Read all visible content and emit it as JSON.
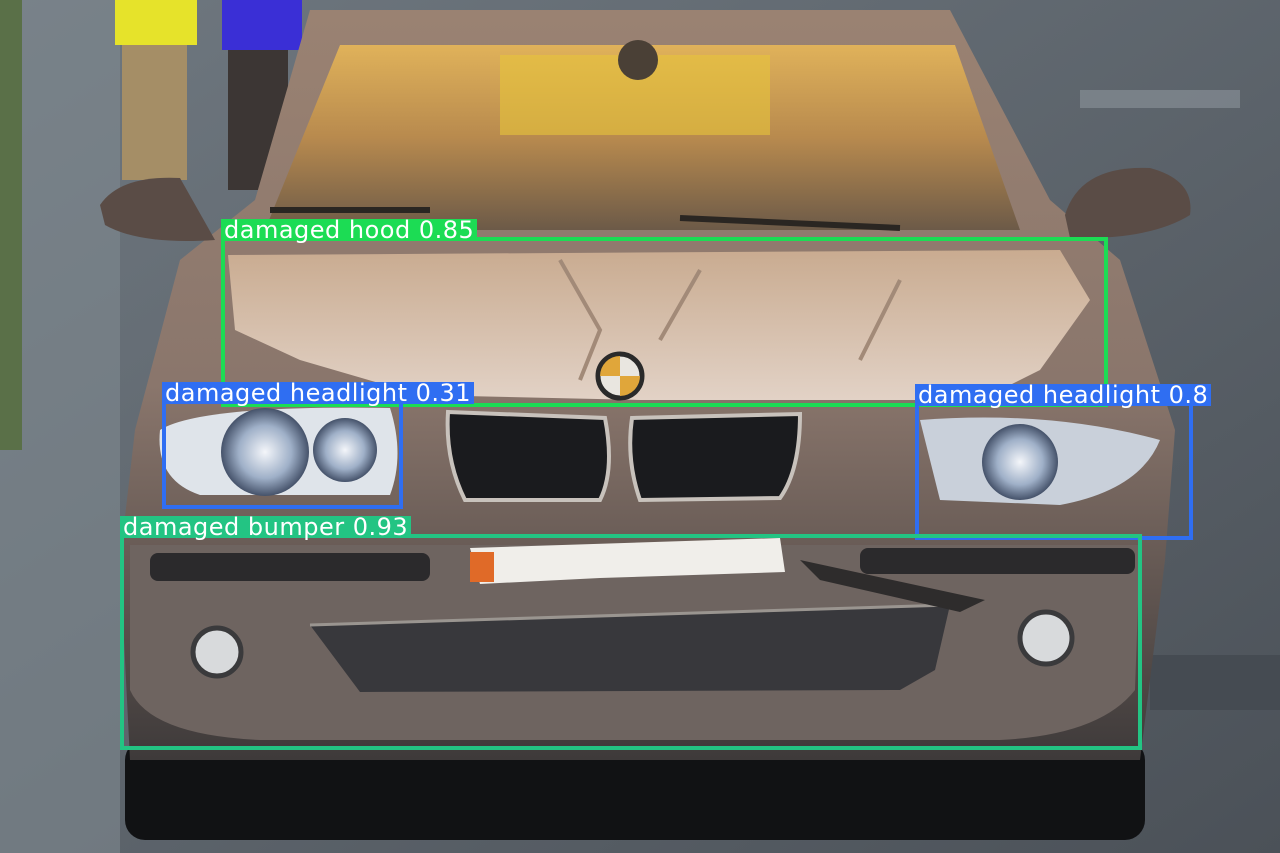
{
  "image": {
    "subject": "car-front-with-collision-damage",
    "colors": {
      "road": "#5d646c",
      "car_body": "#8a7468",
      "windshield_glow": "#c89a4a",
      "hood_box": "#1cdc54",
      "headlight_box": "#2f6ef2",
      "bumper_box": "#23c483"
    }
  },
  "detections": [
    {
      "id": "hood",
      "label": "damaged hood 0.85"
    },
    {
      "id": "headlight_left",
      "label": "damaged headlight 0.31"
    },
    {
      "id": "headlight_right",
      "label": "damaged headlight 0.8"
    },
    {
      "id": "bumper",
      "label": "damaged bumper 0.93"
    }
  ]
}
